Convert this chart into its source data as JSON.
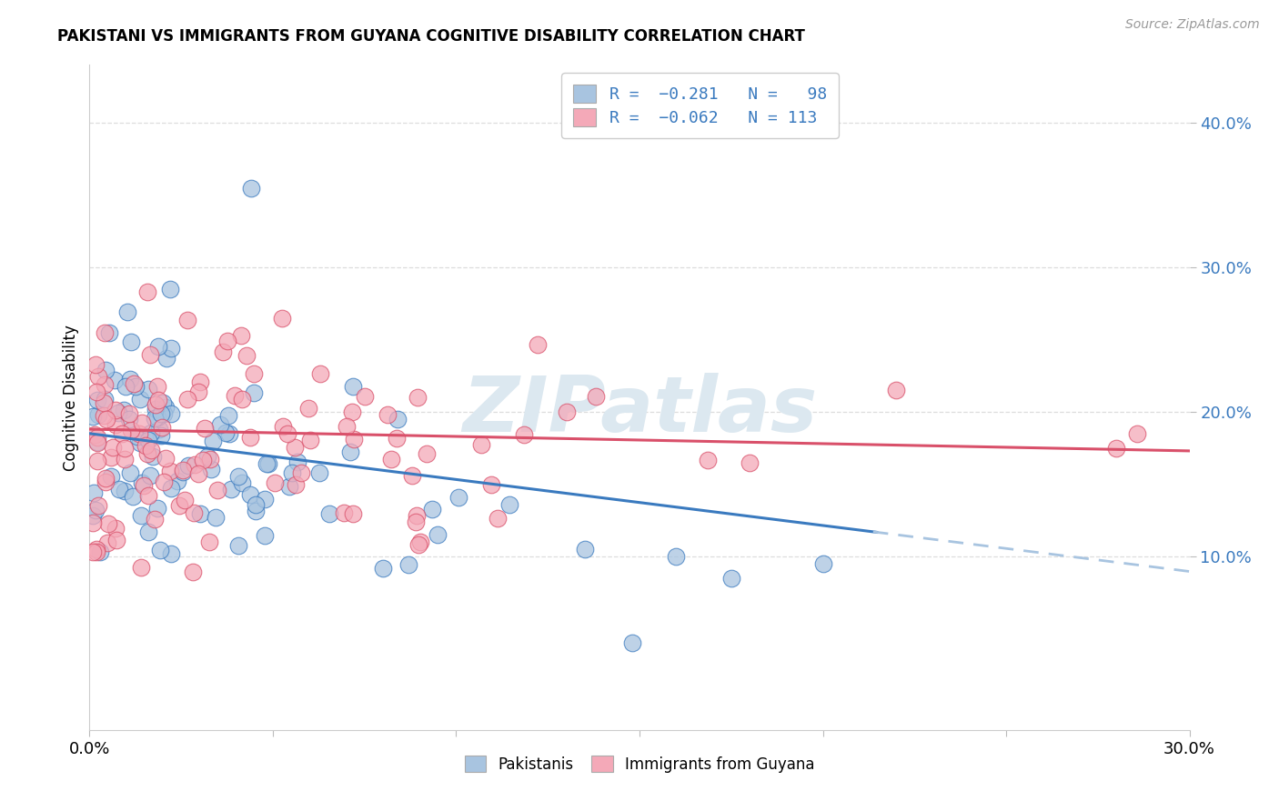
{
  "title": "PAKISTANI VS IMMIGRANTS FROM GUYANA COGNITIVE DISABILITY CORRELATION CHART",
  "source": "Source: ZipAtlas.com",
  "ylabel": "Cognitive Disability",
  "xlim": [
    0.0,
    0.3
  ],
  "ylim": [
    -0.02,
    0.44
  ],
  "yticks": [
    0.1,
    0.2,
    0.3,
    0.4
  ],
  "xticks": [
    0.0,
    0.05,
    0.1,
    0.15,
    0.2,
    0.25,
    0.3
  ],
  "series1_color": "#a8c4e0",
  "series2_color": "#f4a9b8",
  "series1_label": "Pakistanis",
  "series2_label": "Immigrants from Guyana",
  "trend1_color": "#3a7abf",
  "trend2_color": "#d9506a",
  "trend1_dashed_color": "#a8c4e0",
  "background_color": "#ffffff",
  "watermark_color": "#dce8f0",
  "legend_text_color": "#3a7abf",
  "ytick_color": "#3a7abf",
  "grid_color": "#dddddd"
}
